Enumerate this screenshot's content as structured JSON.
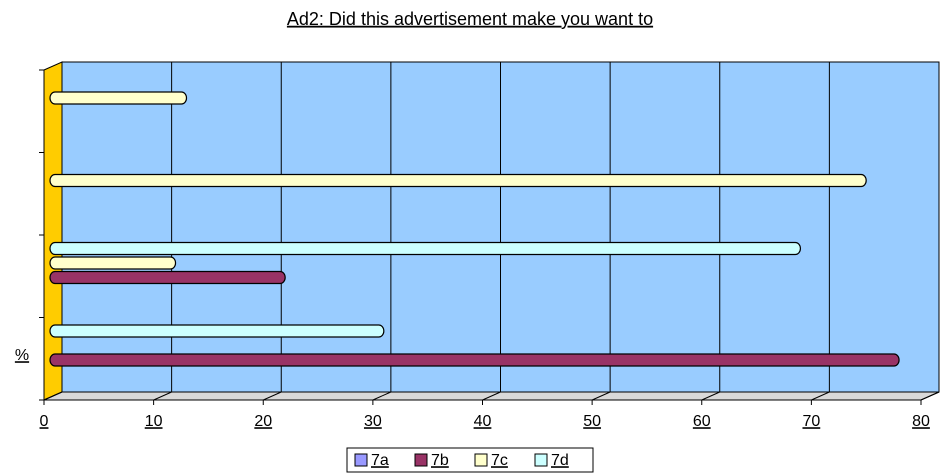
{
  "chart_data": {
    "type": "bar",
    "orientation": "horizontal",
    "title": "Ad2: Did this advertisement make you want to",
    "y_label": "%",
    "categories": [
      null,
      null,
      null,
      null
    ],
    "series": [
      {
        "name": "7a",
        "color": "#9999ff",
        "values": [
          null,
          null,
          null,
          null
        ]
      },
      {
        "name": "7b",
        "color": "#993366",
        "values": [
          78,
          22,
          null,
          null
        ]
      },
      {
        "name": "7c",
        "color": "#ffffcc",
        "values": [
          null,
          12,
          75,
          13
        ]
      },
      {
        "name": "7d",
        "color": "#ccffff",
        "values": [
          31,
          69,
          null,
          null
        ]
      }
    ],
    "xlim": [
      0,
      80
    ],
    "xticks": [
      0,
      10,
      20,
      30,
      40,
      50,
      60,
      70,
      80
    ],
    "grid": true,
    "legend": "bottom",
    "plot_background": "#99ccff",
    "wall_color": "#ffcc00"
  }
}
